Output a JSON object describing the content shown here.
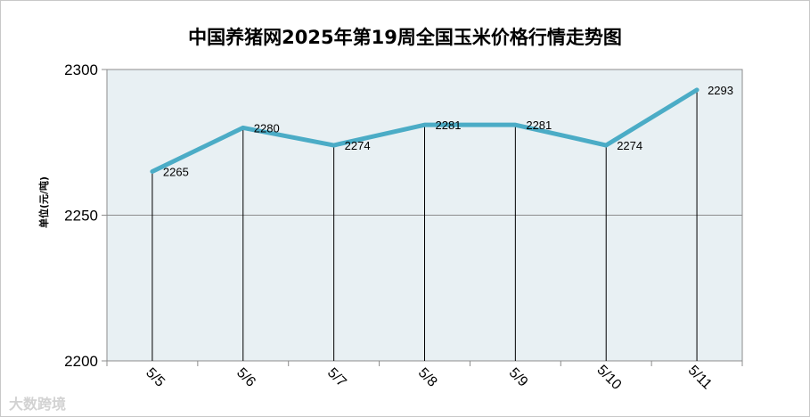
{
  "chart_data": {
    "type": "line",
    "title": "中国养猪网2025年第19周全国玉米价格行情走势图",
    "ylabel": "单位(元/吨)",
    "xlabel": "",
    "categories": [
      "5/5",
      "5/6",
      "5/7",
      "5/8",
      "5/9",
      "5/10",
      "5/11"
    ],
    "series": [
      {
        "values": [
          2265,
          2280,
          2274,
          2281,
          2281,
          2274,
          2293
        ]
      }
    ],
    "ylim": [
      2200,
      2300
    ],
    "yticks": [
      2200,
      2250,
      2300
    ],
    "grid": "horizontal",
    "drop_lines": true,
    "colors": {
      "line": "#4bacc6",
      "plot_bg": "#e8f0f3"
    }
  },
  "watermark": "大数跨境"
}
